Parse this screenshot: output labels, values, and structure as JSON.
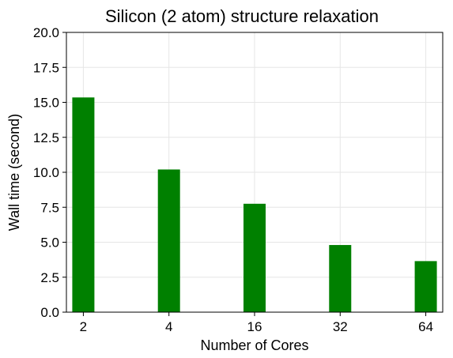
{
  "chart_data": {
    "type": "bar",
    "title": "Silicon (2 atom) structure relaxation",
    "xlabel": "Number of Cores",
    "ylabel": "Wall time (second)",
    "categories": [
      "2",
      "4",
      "16",
      "32",
      "64"
    ],
    "values": [
      15.35,
      10.2,
      7.75,
      4.8,
      3.65
    ],
    "ylim": [
      0,
      20
    ],
    "yticks": [
      "0.0",
      "2.5",
      "5.0",
      "7.5",
      "10.0",
      "12.5",
      "15.0",
      "17.5",
      "20.0"
    ],
    "grid": true,
    "bar_color": "#008000",
    "grid_color": "#e6e6e6"
  }
}
